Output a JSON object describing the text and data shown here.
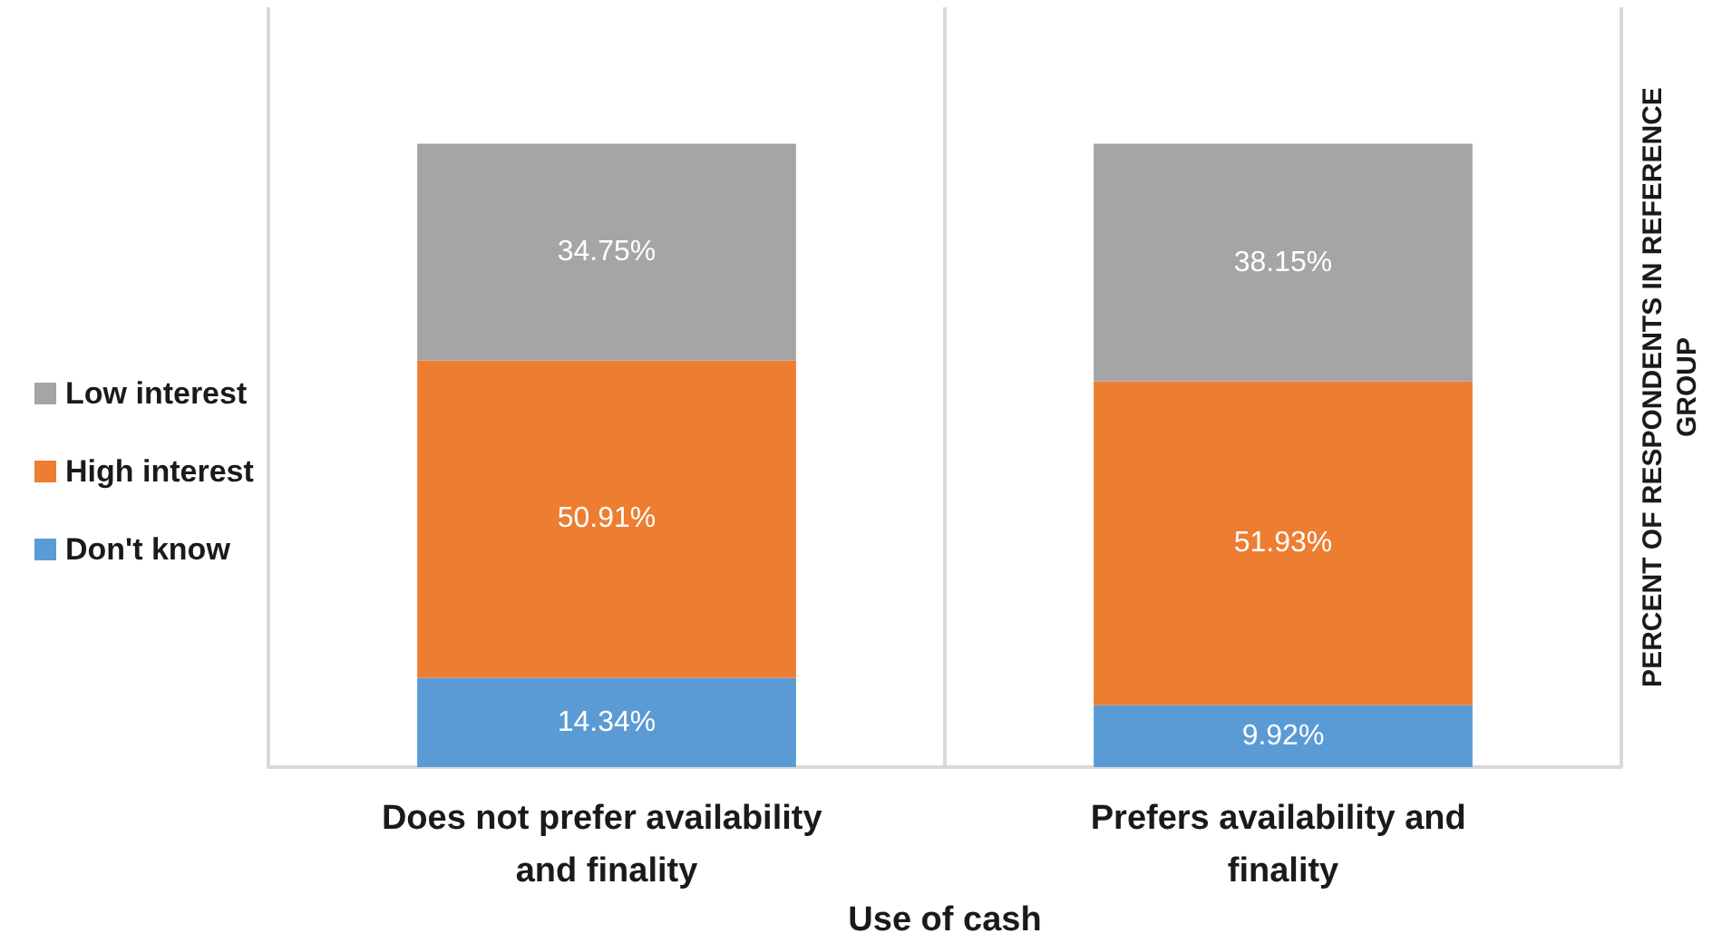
{
  "chart_data": {
    "type": "bar",
    "stacked": true,
    "xlabel": "Use of cash",
    "ylabel": "PERCENT OF RESPONDENTS IN REFERENCE GROUP",
    "categories": [
      "Does not prefer availability and finality",
      "Prefers availability and finality"
    ],
    "series": [
      {
        "name": "Don't know",
        "color": "#5b9bd5",
        "values": [
          14.34,
          9.92
        ],
        "value_labels": [
          "14.34%",
          "9.92%"
        ]
      },
      {
        "name": "High interest",
        "color": "#ed7d31",
        "values": [
          50.91,
          51.93
        ],
        "value_labels": [
          "50.91%",
          "51.93%"
        ]
      },
      {
        "name": "Low interest",
        "color": "#a5a5a5",
        "values": [
          34.75,
          38.15
        ],
        "value_labels": [
          "34.75%",
          "38.15%"
        ]
      }
    ],
    "grid": "x",
    "legend": "left",
    "tick_labels": "x"
  }
}
